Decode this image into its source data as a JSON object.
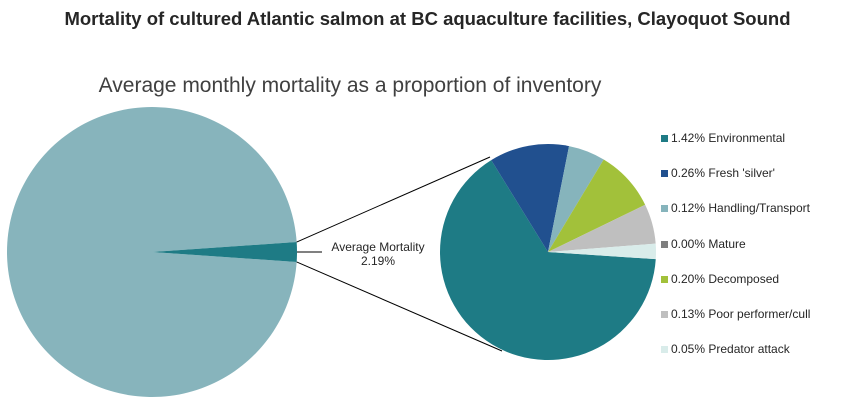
{
  "title": "Mortality of cultured Atlantic salmon at BC aquaculture facilities, Clayoquot Sound",
  "chart_data": {
    "type": "pie",
    "subtitle": "Average monthly mortality as a proportion of inventory",
    "primary": {
      "color": "#87b4bc",
      "other_value": 97.81,
      "highlight": {
        "label": "Average Mortality",
        "value_label": "2.19%",
        "value": 2.19,
        "color": "#1e7b85"
      }
    },
    "secondary": [
      {
        "label": "1.42% Environmental",
        "value": 1.42,
        "color": "#1e7b85"
      },
      {
        "label": "0.26% Fresh 'silver'",
        "value": 0.26,
        "color": "#21508f"
      },
      {
        "label": "0.12% Handling/Transport",
        "value": 0.12,
        "color": "#86b4bc"
      },
      {
        "label": "0.00% Mature",
        "value": 0.0,
        "color": "#7f7f7f"
      },
      {
        "label": "0.20% Decomposed",
        "value": 0.2,
        "color": "#a2c13a"
      },
      {
        "label": "0.13% Poor performer/cull",
        "value": 0.13,
        "color": "#bfbfbf"
      },
      {
        "label": "0.05% Predator attack",
        "value": 0.05,
        "color": "#d9ecea"
      }
    ],
    "legend_position": "right"
  }
}
